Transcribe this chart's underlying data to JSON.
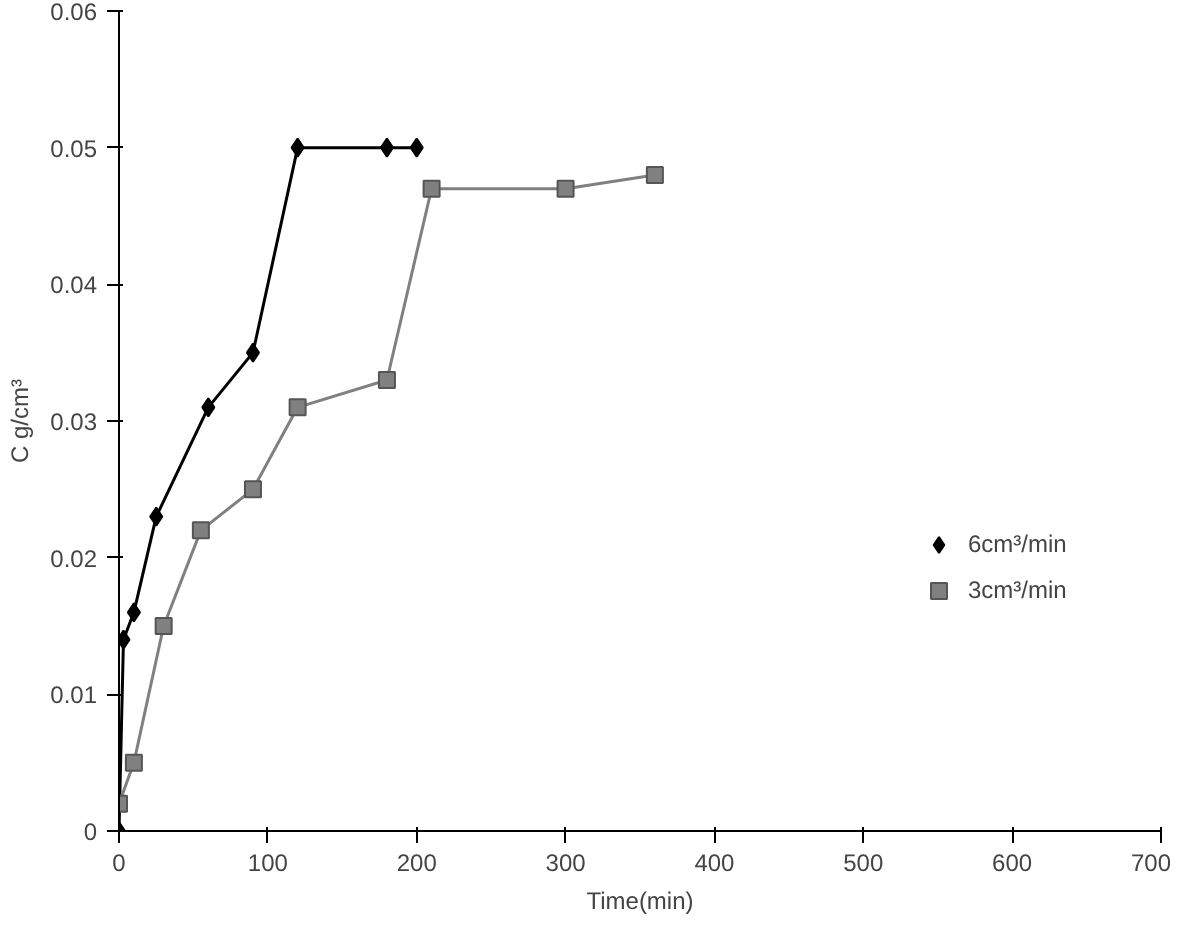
{
  "chart_data": {
    "type": "line",
    "xlabel": "Time(min)",
    "ylabel": "C g/cm³",
    "xlim": [
      0,
      700
    ],
    "xticks": [
      0,
      100,
      200,
      300,
      400,
      500,
      600,
      700
    ],
    "ylim": [
      0,
      0.06
    ],
    "yticks": [
      0,
      0.01,
      0.02,
      0.03,
      0.04,
      0.05,
      0.06
    ],
    "grid": false,
    "legend": "right",
    "series": [
      {
        "name": "6cm³/min",
        "color": "#000000",
        "marker": "diamond",
        "x": [
          0,
          3,
          10,
          25,
          60,
          90,
          120,
          180,
          200
        ],
        "values": [
          0,
          0.014,
          0.016,
          0.023,
          0.031,
          0.035,
          0.05,
          0.05,
          0.05
        ]
      },
      {
        "name": "3cm³/min",
        "color": "#808080",
        "marker": "square",
        "x": [
          0,
          10,
          30,
          55,
          90,
          120,
          180,
          210,
          300,
          360
        ],
        "values": [
          0.002,
          0.005,
          0.015,
          0.022,
          0.025,
          0.031,
          0.033,
          0.047,
          0.047,
          0.048
        ]
      }
    ]
  }
}
